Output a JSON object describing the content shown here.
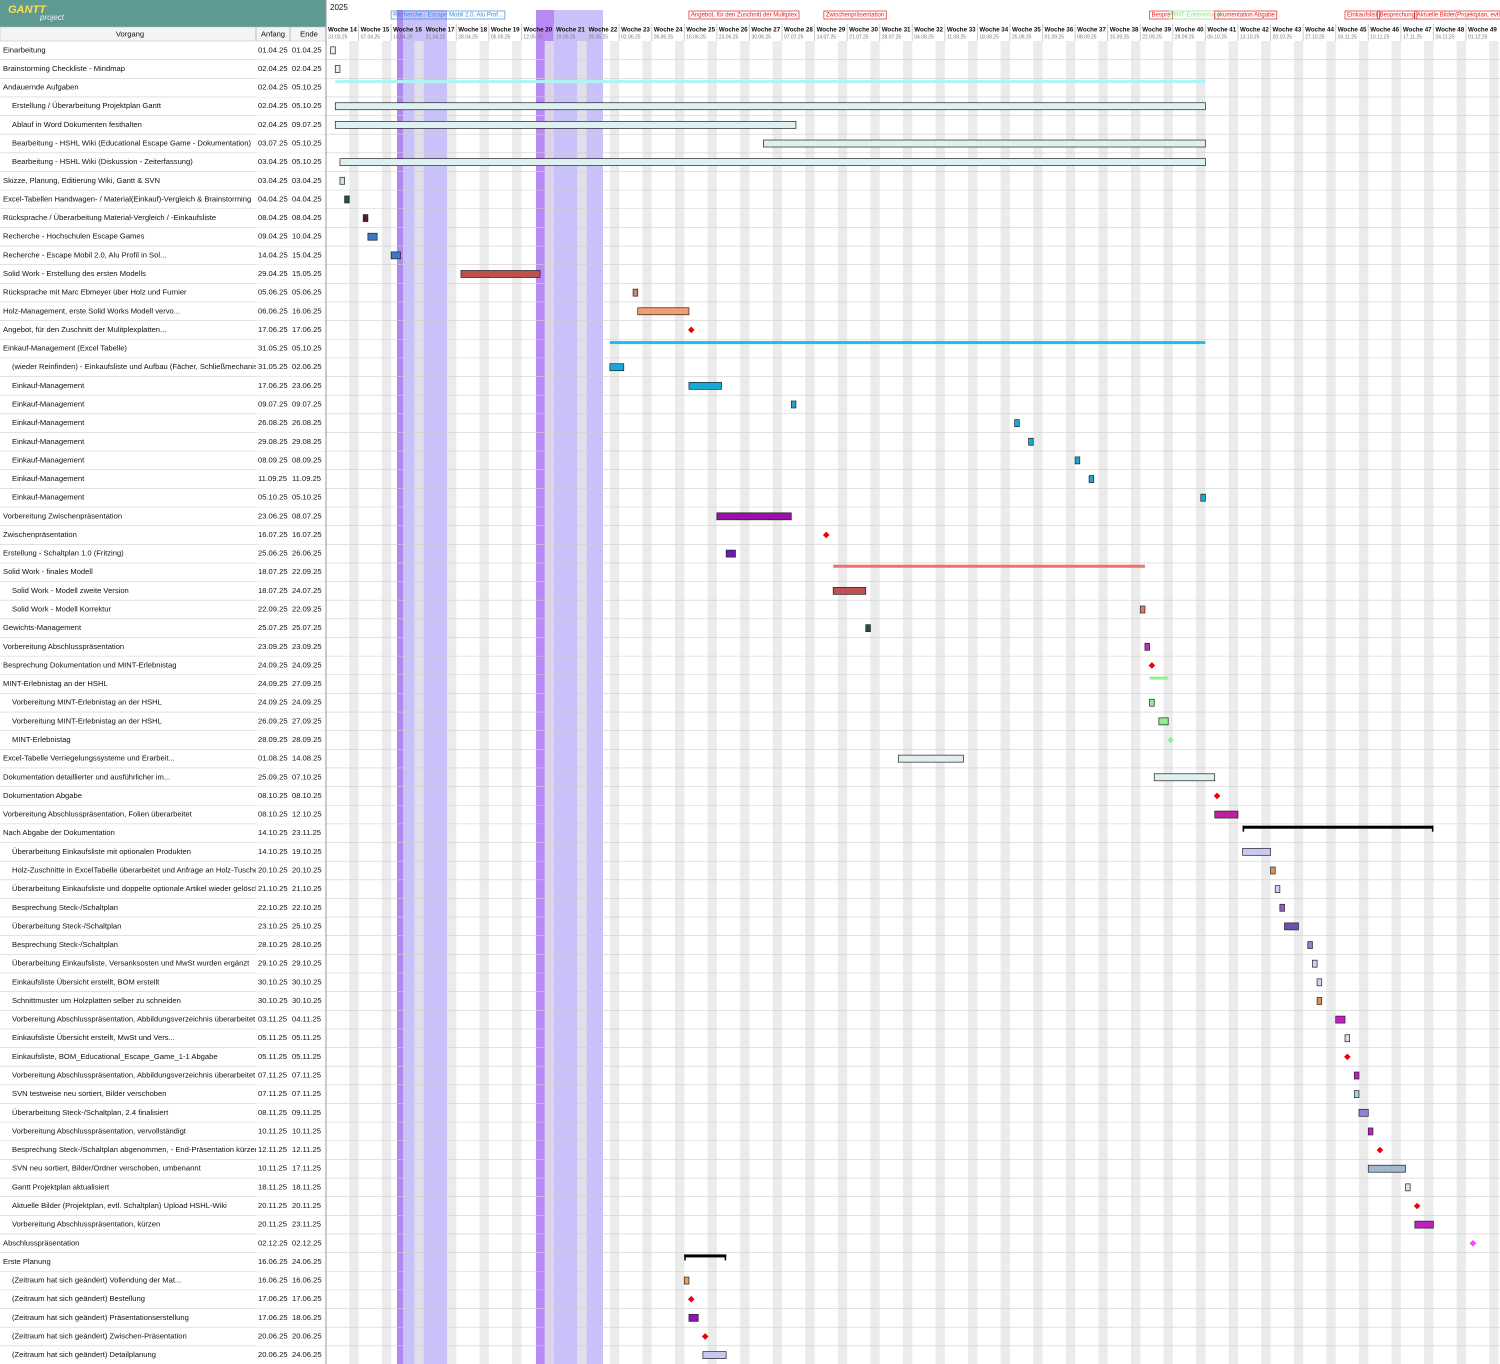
{
  "header": {
    "logo": "GANTT",
    "logo_sub": "project",
    "columns": [
      "Vorgang",
      "Anfang",
      "Ende"
    ],
    "year": "2025"
  },
  "weeks": [
    {
      "label": "Woche 14",
      "date": "31.03.25"
    },
    {
      "label": "Woche 15",
      "date": "07.04.25"
    },
    {
      "label": "Woche 16",
      "date": "14.04.25"
    },
    {
      "label": "Woche 17",
      "date": "21.04.25"
    },
    {
      "label": "Woche 18",
      "date": "28.04.25"
    },
    {
      "label": "Woche 19",
      "date": "05.05.25"
    },
    {
      "label": "Woche 20",
      "date": "12.05.25"
    },
    {
      "label": "Woche 21",
      "date": "19.05.25"
    },
    {
      "label": "Woche 22",
      "date": "26.05.25"
    },
    {
      "label": "Woche 23",
      "date": "02.06.25"
    },
    {
      "label": "Woche 24",
      "date": "09.06.25"
    },
    {
      "label": "Woche 25",
      "date": "16.06.25"
    },
    {
      "label": "Woche 26",
      "date": "23.06.25"
    },
    {
      "label": "Woche 27",
      "date": "30.06.25"
    },
    {
      "label": "Woche 28",
      "date": "07.07.25"
    },
    {
      "label": "Woche 29",
      "date": "14.07.25"
    },
    {
      "label": "Woche 30",
      "date": "21.07.25"
    },
    {
      "label": "Woche 31",
      "date": "28.07.25"
    },
    {
      "label": "Woche 32",
      "date": "04.08.25"
    },
    {
      "label": "Woche 33",
      "date": "11.08.25"
    },
    {
      "label": "Woche 34",
      "date": "18.08.25"
    },
    {
      "label": "Woche 35",
      "date": "25.08.25"
    },
    {
      "label": "Woche 36",
      "date": "01.09.25"
    },
    {
      "label": "Woche 37",
      "date": "08.09.25"
    },
    {
      "label": "Woche 38",
      "date": "15.09.25"
    },
    {
      "label": "Woche 39",
      "date": "22.09.25"
    },
    {
      "label": "Woche 40",
      "date": "29.09.25"
    },
    {
      "label": "Woche 41",
      "date": "06.10.25"
    },
    {
      "label": "Woche 42",
      "date": "13.10.25"
    },
    {
      "label": "Woche 43",
      "date": "20.10.25"
    },
    {
      "label": "Woche 44",
      "date": "27.10.25"
    },
    {
      "label": "Woche 45",
      "date": "03.11.25"
    },
    {
      "label": "Woche 46",
      "date": "10.11.25"
    },
    {
      "label": "Woche 47",
      "date": "17.11.25"
    },
    {
      "label": "Woche 48",
      "date": "24.11.25"
    },
    {
      "label": "Woche 49",
      "date": "01.12.25"
    }
  ],
  "markers": [
    {
      "label": "Recherche - Escape Mobil 2.0, Alu Prof...",
      "date": "14.04.25",
      "color": "#3a8ad8"
    },
    {
      "label": "Angebot, für den Zuschnitt der Mulitplex",
      "date": "17.06.25",
      "color": "#e02020"
    },
    {
      "label": "Zwischenpräsentation",
      "date": "16.07.25",
      "color": "#e02020"
    },
    {
      "label": "Bespre",
      "date": "24.09.25",
      "color": "#e02020"
    },
    {
      "label": "MINT-Erlebnistag",
      "date": "28.09.25",
      "color": "#90e090"
    },
    {
      "label": "okumentation Abgabe",
      "date": "08.10.25",
      "color": "#e02020"
    },
    {
      "label": "Einkaufslist",
      "date": "05.11.25",
      "color": "#e02020"
    },
    {
      "label": "Besprechung",
      "date": "12.11.25",
      "color": "#e02020"
    },
    {
      "label": "Aktuelle Bilder(Projektplan, evtl.",
      "date": "20.11.25",
      "color": "#e02020"
    }
  ],
  "tasks": [
    {
      "name": "Einarbeitung",
      "start": "01.04.25",
      "end": "01.04.25",
      "level": 0,
      "color": "#e8f0f8"
    },
    {
      "name": "Brainstorming Checkliste - Mindmap",
      "start": "02.04.25",
      "end": "02.04.25",
      "level": 0,
      "color": "#e8f0f8"
    },
    {
      "name": "Andauernde Aufgaben",
      "start": "02.04.25",
      "end": "05.10.25",
      "level": 0,
      "kind": "summary",
      "color": "#aef4f4"
    },
    {
      "name": "Erstellung / Überarbeitung Projektplan Gantt",
      "start": "02.04.25",
      "end": "05.10.25",
      "level": 1,
      "color": "#dff0f0"
    },
    {
      "name": "Ablauf in Word Dokumenten festhalten",
      "start": "02.04.25",
      "end": "09.07.25",
      "level": 1,
      "color": "#dff0f0"
    },
    {
      "name": "Bearbeitung - HSHL Wiki (Educational Escape Game - Dokumentation)",
      "start": "03.07.25",
      "end": "05.10.25",
      "level": 1,
      "color": "#dff0f0"
    },
    {
      "name": "Bearbeitung - HSHL Wiki (Diskussion - Zeiterfassung)",
      "start": "03.04.25",
      "end": "05.10.25",
      "level": 1,
      "color": "#dff0f0"
    },
    {
      "name": "Skizze, Planung, Editierung Wiki, Gantt & SVN",
      "start": "03.04.25",
      "end": "03.04.25",
      "level": 0,
      "color": "#c8e8d0"
    },
    {
      "name": "Excel-Tabellen Handwagen- / Material(Einkauf)-Vergleich & Brainstorming",
      "start": "04.04.25",
      "end": "04.04.25",
      "level": 0,
      "color": "#1e5a32"
    },
    {
      "name": "Rücksprache / Überarbeitung Material-Vergleich / -Einkaufsliste",
      "start": "08.04.25",
      "end": "08.04.25",
      "level": 0,
      "color": "#5a1a3a"
    },
    {
      "name": "Recherche - Hochschulen Escape Games",
      "start": "09.04.25",
      "end": "10.04.25",
      "level": 0,
      "color": "#3a78c8"
    },
    {
      "name": "Recherche - Escape Mobil 2.0, Alu Profil in Sol...",
      "start": "14.04.25",
      "end": "15.04.25",
      "level": 0,
      "color": "#3a78c8"
    },
    {
      "name": "Solid Work - Erstellung des ersten Modells",
      "start": "29.04.25",
      "end": "15.05.25",
      "level": 0,
      "color": "#c0504d"
    },
    {
      "name": "Rücksprache mit Marc Ebmeyer über Holz und Furnier",
      "start": "05.06.25",
      "end": "05.06.25",
      "level": 0,
      "color": "#d08a6a"
    },
    {
      "name": "Holz-Management, erste Solid Works Modell vervo...",
      "start": "06.06.25",
      "end": "16.06.25",
      "level": 0,
      "color": "#f0a070"
    },
    {
      "name": "Angebot, für den Zuschnitt der Mulitplexplatten...",
      "start": "17.06.25",
      "end": "17.06.25",
      "level": 0,
      "kind": "milestone",
      "color": "#ee0000"
    },
    {
      "name": "Einkauf-Management (Excel Tabelle)",
      "start": "31.05.25",
      "end": "05.10.25",
      "level": 0,
      "kind": "summary",
      "color": "#18c0f0"
    },
    {
      "name": "(wieder Reinfinden) - Einkaufsliste und Aufbau (Fächer, Schließmechanismen)",
      "start": "31.05.25",
      "end": "02.06.25",
      "level": 1,
      "color": "#18a8d8"
    },
    {
      "name": "Einkauf-Management",
      "start": "17.06.25",
      "end": "23.06.25",
      "level": 1,
      "color": "#18a8d8"
    },
    {
      "name": "Einkauf-Management",
      "start": "09.07.25",
      "end": "09.07.25",
      "level": 1,
      "color": "#18a8d8"
    },
    {
      "name": "Einkauf-Management",
      "start": "26.08.25",
      "end": "26.08.25",
      "level": 1,
      "color": "#18a8d8"
    },
    {
      "name": "Einkauf-Management",
      "start": "29.08.25",
      "end": "29.08.25",
      "level": 1,
      "color": "#18a8d8"
    },
    {
      "name": "Einkauf-Management",
      "start": "08.09.25",
      "end": "08.09.25",
      "level": 1,
      "color": "#18a8d8"
    },
    {
      "name": "Einkauf-Management",
      "start": "11.09.25",
      "end": "11.09.25",
      "level": 1,
      "color": "#18a8d8"
    },
    {
      "name": "Einkauf-Management",
      "start": "05.10.25",
      "end": "05.10.25",
      "level": 1,
      "color": "#18a8d8"
    },
    {
      "name": "Vorbereitung Zwischenpräsentation",
      "start": "23.06.25",
      "end": "08.07.25",
      "level": 0,
      "color": "#9a10a8"
    },
    {
      "name": "Zwischenpräsentation",
      "start": "16.07.25",
      "end": "16.07.25",
      "level": 0,
      "kind": "milestone",
      "color": "#ee0000"
    },
    {
      "name": "Erstellung - Schaltplan 1.0 (Fritzing)",
      "start": "25.06.25",
      "end": "26.06.25",
      "level": 0,
      "color": "#6a1ab0"
    },
    {
      "name": "Solid Work - finales Modell",
      "start": "18.07.25",
      "end": "22.09.25",
      "level": 0,
      "kind": "summary",
      "color": "#f07070"
    },
    {
      "name": "Solid Work - Modell zweite Version",
      "start": "18.07.25",
      "end": "24.07.25",
      "level": 1,
      "color": "#c0504d"
    },
    {
      "name": "Solid Work - Modell Korrektur",
      "start": "22.09.25",
      "end": "22.09.25",
      "level": 1,
      "color": "#e08060"
    },
    {
      "name": "Gewichts-Management",
      "start": "25.07.25",
      "end": "25.07.25",
      "level": 0,
      "color": "#1a5a40"
    },
    {
      "name": "Vorbereitung Abschlusspräsentation",
      "start": "23.09.25",
      "end": "23.09.25",
      "level": 0,
      "color": "#c030c0"
    },
    {
      "name": "Besprechung Dokumentation und MINT-Erlebnistag",
      "start": "24.09.25",
      "end": "24.09.25",
      "level": 0,
      "kind": "milestone",
      "color": "#ee0000"
    },
    {
      "name": "MINT-Erlebnistag an der HSHL",
      "start": "24.09.25",
      "end": "27.09.25",
      "level": 0,
      "kind": "summary",
      "color": "#90f090"
    },
    {
      "name": "Vorbereitung MINT-Erlebnistag an der HSHL",
      "start": "24.09.25",
      "end": "24.09.25",
      "level": 1,
      "color": "#90f090"
    },
    {
      "name": "Vorbereitung MINT-Erlebnistag an der HSHL",
      "start": "26.09.25",
      "end": "27.09.25",
      "level": 1,
      "color": "#90f090"
    },
    {
      "name": "MINT-Erlebnistag",
      "start": "28.09.25",
      "end": "28.09.25",
      "level": 1,
      "kind": "milestone",
      "color": "#90f090"
    },
    {
      "name": "Excel-Tabelle Verriegelungssysteme und Erarbeit...",
      "start": "01.08.25",
      "end": "14.08.25",
      "level": 0,
      "color": "#e0f0f0"
    },
    {
      "name": "Dokumentation detaillierter und ausführlicher im...",
      "start": "25.09.25",
      "end": "07.10.25",
      "level": 0,
      "color": "#e0f0f0"
    },
    {
      "name": "Dokumentation Abgabe",
      "start": "08.10.25",
      "end": "08.10.25",
      "level": 0,
      "kind": "milestone",
      "color": "#ee0000"
    },
    {
      "name": "Vorbereitung Abschlusspräsentation, Folien überarbeitet",
      "start": "08.10.25",
      "end": "12.10.25",
      "level": 0,
      "color": "#c020a0"
    },
    {
      "name": "Nach Abgabe der Dokumentation",
      "start": "14.10.25",
      "end": "23.11.25",
      "level": 0,
      "kind": "summary",
      "color": "#000000"
    },
    {
      "name": "Überarbeitung Einkaufsliste mit optionalen Produkten",
      "start": "14.10.25",
      "end": "19.10.25",
      "level": 1,
      "color": "#c8c8f0"
    },
    {
      "name": "Holz-Zuschnitte in ExcelTabelle überarbeitet und Anfrage an Holz-Tusche",
      "start": "20.10.25",
      "end": "20.10.25",
      "level": 1,
      "color": "#e09050"
    },
    {
      "name": "Überarbeitung Einkaufsliste und doppelte optionale Artikel wieder gelöscht",
      "start": "21.10.25",
      "end": "21.10.25",
      "level": 1,
      "color": "#d0d0f0"
    },
    {
      "name": "Besprechung Steck-/Schaltplan",
      "start": "22.10.25",
      "end": "22.10.25",
      "level": 1,
      "color": "#9060c0"
    },
    {
      "name": "Überarbeitung Steck-/Schaltplan",
      "start": "23.10.25",
      "end": "25.10.25",
      "level": 1,
      "color": "#7050b0"
    },
    {
      "name": "Besprechung Steck-/Schaltplan",
      "start": "28.10.25",
      "end": "28.10.25",
      "level": 1,
      "color": "#9080d0"
    },
    {
      "name": "Überarbeitung Einkaufsliste, Versanksosten und MwSt wurden ergänzt",
      "start": "29.10.25",
      "end": "29.10.25",
      "level": 1,
      "color": "#d0d0f0"
    },
    {
      "name": "Einkaufsliste Übersicht erstellt, BOM erstellt",
      "start": "30.10.25",
      "end": "30.10.25",
      "level": 1,
      "color": "#d0d8f0"
    },
    {
      "name": "Schnittmuster um Holzplatten selber zu schneiden",
      "start": "30.10.25",
      "end": "30.10.25",
      "level": 1,
      "color": "#e09050"
    },
    {
      "name": "Vorbereitung Abschlusspräsentation, Abbildungsverzeichnis überarbeitet",
      "start": "03.11.25",
      "end": "04.11.25",
      "level": 1,
      "color": "#c020c0"
    },
    {
      "name": "Einkaufsliste Übersicht erstellt, MwSt und Vers...",
      "start": "05.11.25",
      "end": "05.11.25",
      "level": 1,
      "color": "#d0e0f0"
    },
    {
      "name": "Einkaufsliste, BOM_Educational_Escape_Game_1-1 Abgabe",
      "start": "05.11.25",
      "end": "05.11.25",
      "level": 1,
      "kind": "milestone",
      "color": "#ee0000"
    },
    {
      "name": "Vorbereitung Abschlusspräsentation, Abbildungsverzeichnis überarbeitet",
      "start": "07.11.25",
      "end": "07.11.25",
      "level": 1,
      "color": "#c020c0"
    },
    {
      "name": "SVN testweise neu sortiert, Bilder verschoben",
      "start": "07.11.25",
      "end": "07.11.25",
      "level": 1,
      "color": "#b0d0e0"
    },
    {
      "name": "Überarbeitung Steck-/Schaltplan, 2.4 finalisiert",
      "start": "08.11.25",
      "end": "09.11.25",
      "level": 1,
      "color": "#9080e0"
    },
    {
      "name": "Vorbereitung Abschlusspräsentation, vervollständigt",
      "start": "10.11.25",
      "end": "10.11.25",
      "level": 1,
      "color": "#c020c0"
    },
    {
      "name": "Besprechung Steck-/Schaltplan abgenommen, - End-Präsentation kürzen",
      "start": "12.11.25",
      "end": "12.11.25",
      "level": 1,
      "kind": "milestone",
      "color": "#ee0000"
    },
    {
      "name": "SVN neu sortiert, Bilder/Ordner verschoben, umbenannt",
      "start": "10.11.25",
      "end": "17.11.25",
      "level": 1,
      "color": "#a0b8d0"
    },
    {
      "name": "Gantt Projektplan aktualisiert",
      "start": "18.11.25",
      "end": "18.11.25",
      "level": 1,
      "color": "#e0e0e0"
    },
    {
      "name": "Aktuelle Bilder (Projektplan, evtl. Schaltplan) Upload HSHL-Wiki",
      "start": "20.11.25",
      "end": "20.11.25",
      "level": 1,
      "kind": "milestone",
      "color": "#ee0000"
    },
    {
      "name": "Vorbereitung Abschlusspräsentation, kürzen",
      "start": "20.11.25",
      "end": "23.11.25",
      "level": 1,
      "color": "#c020c0"
    },
    {
      "name": "Abschlusspräsentation",
      "start": "02.12.25",
      "end": "02.12.25",
      "level": 0,
      "kind": "milestone",
      "color": "#ff40ff"
    },
    {
      "name": "Erste Planung",
      "start": "16.06.25",
      "end": "24.06.25",
      "level": 0,
      "kind": "summary",
      "color": "#000000"
    },
    {
      "name": "(Zeitraum hat sich geändert) Vollendung der Mat...",
      "start": "16.06.25",
      "end": "16.06.25",
      "level": 1,
      "color": "#f0a050"
    },
    {
      "name": "(Zeitraum hat sich geändert) Bestellung",
      "start": "17.06.25",
      "end": "17.06.25",
      "level": 1,
      "kind": "milestone",
      "color": "#ee0000"
    },
    {
      "name": "(Zeitraum hat sich geändert) Präsentationserstellung",
      "start": "17.06.25",
      "end": "18.06.25",
      "level": 1,
      "color": "#9010c0"
    },
    {
      "name": "(Zeitraum hat sich geändert) Zwischen-Präsentation",
      "start": "20.06.25",
      "end": "20.06.25",
      "level": 1,
      "kind": "milestone",
      "color": "#ee0000"
    },
    {
      "name": "(Zeitraum hat sich geändert) Detailplanung",
      "start": "20.06.25",
      "end": "24.06.25",
      "level": 1,
      "color": "#c8c8f0"
    }
  ]
}
